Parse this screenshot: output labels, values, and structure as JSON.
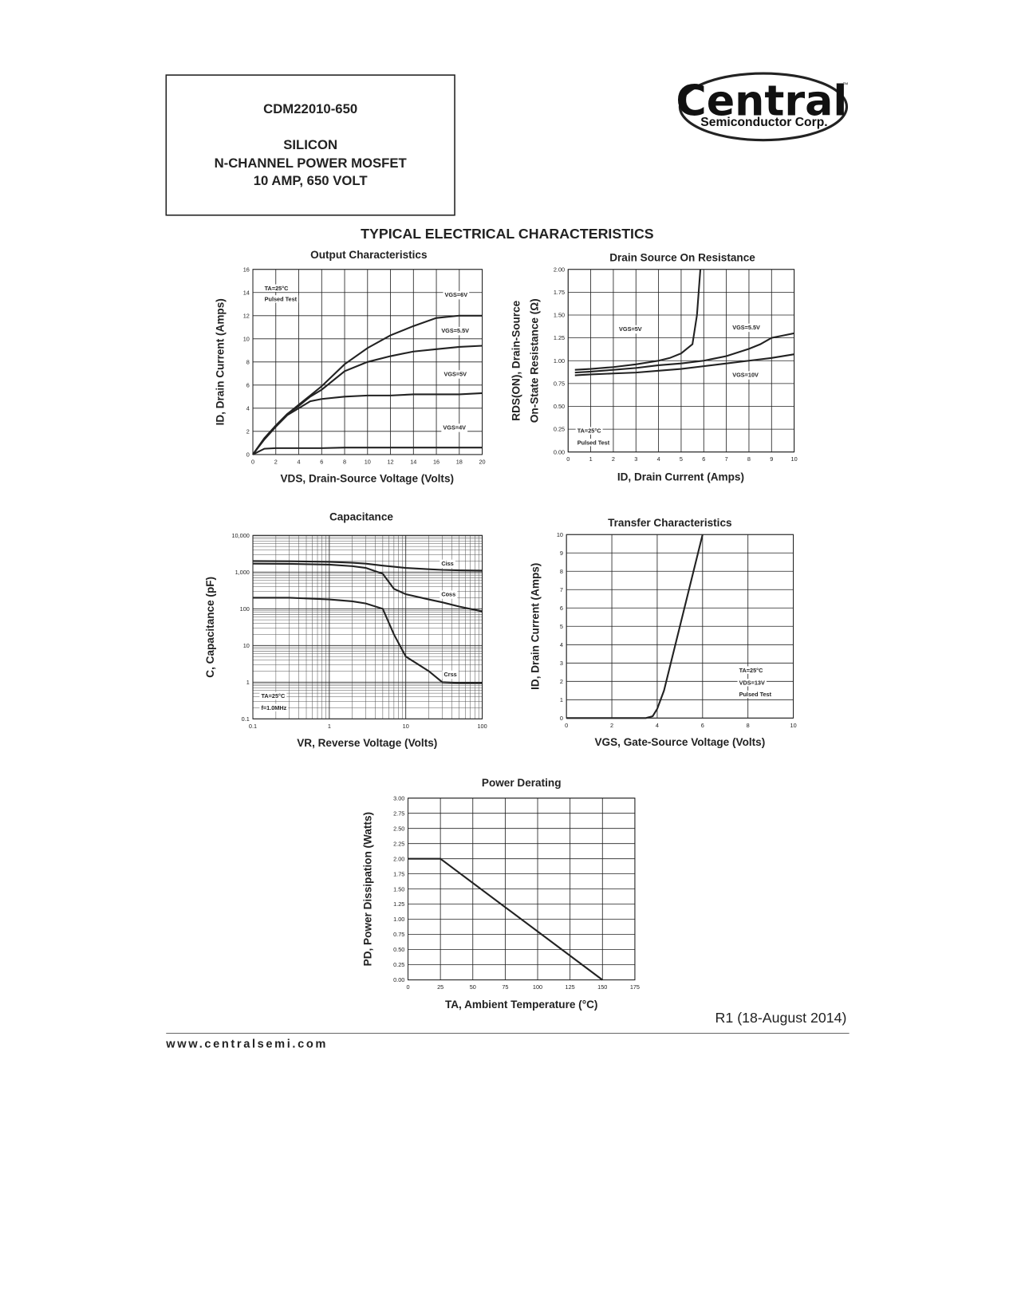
{
  "header": {
    "part": "CDM22010-650",
    "line1": "SILICON",
    "line2": "N-CHANNEL POWER MOSFET",
    "line3": "10 AMP, 650 VOLT"
  },
  "logo": {
    "name": "Central",
    "sub": "Semiconductor Corp.",
    "tm": "™"
  },
  "section_title": "TYPICAL ELECTRICAL CHARACTERISTICS",
  "chart_data": [
    {
      "type": "line",
      "title": "Output Characteristics",
      "x_label": "VDS, Drain-Source Voltage (Volts)",
      "y_label": [
        "ID, Drain Current (Amps)"
      ],
      "xlim": [
        0,
        20
      ],
      "xticks": [
        0,
        2,
        4,
        6,
        8,
        10,
        12,
        14,
        16,
        18,
        20
      ],
      "ylim": [
        0,
        16
      ],
      "yticks": [
        0,
        2,
        4,
        6,
        8,
        10,
        12,
        14,
        16
      ],
      "grid": true,
      "annotations": [
        "TA=25°C",
        "Pulsed Test"
      ],
      "series": [
        {
          "name": "VGS=6V",
          "color": "#222222",
          "x": [
            0,
            1,
            2,
            3,
            4,
            5,
            6,
            8,
            10,
            12,
            14,
            16,
            18,
            20
          ],
          "values": [
            0,
            1.4,
            2.5,
            3.5,
            4.3,
            5.1,
            5.9,
            7.8,
            9.2,
            10.3,
            11.1,
            11.8,
            12.0,
            12.0
          ]
        },
        {
          "name": "VGS=5.5V",
          "color": "#222222",
          "x": [
            0,
            1,
            2,
            3,
            4,
            5,
            6,
            8,
            10,
            12,
            14,
            16,
            18,
            20
          ],
          "values": [
            0,
            1.4,
            2.5,
            3.5,
            4.2,
            5.0,
            5.6,
            7.2,
            8.0,
            8.5,
            8.9,
            9.1,
            9.3,
            9.4
          ]
        },
        {
          "name": "VGS=5V",
          "color": "#222222",
          "x": [
            0,
            1,
            2,
            3,
            4,
            5,
            6,
            8,
            10,
            12,
            14,
            16,
            18,
            20
          ],
          "values": [
            0,
            1.3,
            2.4,
            3.4,
            4.0,
            4.6,
            4.8,
            5.0,
            5.1,
            5.1,
            5.2,
            5.2,
            5.2,
            5.3
          ]
        },
        {
          "name": "VGS=4V",
          "color": "#222222",
          "x": [
            0,
            1,
            2,
            3,
            4,
            5,
            6,
            8,
            10,
            12,
            14,
            16,
            18,
            20
          ],
          "values": [
            0,
            0.5,
            0.55,
            0.55,
            0.55,
            0.55,
            0.55,
            0.6,
            0.6,
            0.6,
            0.6,
            0.6,
            0.6,
            0.6
          ]
        }
      ]
    },
    {
      "type": "line",
      "title": "Drain Source On Resistance",
      "x_label": "ID, Drain Current (Amps)",
      "y_label": [
        "RDS(ON), Drain-Source",
        "On-State Resistance (Ω)"
      ],
      "xlim": [
        0,
        10
      ],
      "xticks": [
        0,
        1,
        2,
        3,
        4,
        5,
        6,
        7,
        8,
        9,
        10
      ],
      "ylim": [
        0,
        2
      ],
      "yticks": [
        {
          "value": 0,
          "label": "0.00"
        },
        {
          "value": 0.25,
          "label": "0.25"
        },
        {
          "value": 0.5,
          "label": "0.50"
        },
        {
          "value": 0.75,
          "label": "0.75"
        },
        {
          "value": 1,
          "label": "1.00"
        },
        {
          "value": 1.25,
          "label": "1.25"
        },
        {
          "value": 1.5,
          "label": "1.50"
        },
        {
          "value": 1.75,
          "label": "1.75"
        },
        {
          "value": 2,
          "label": "2.00"
        }
      ],
      "grid": true,
      "annotations": [
        "TA=25°C",
        "Pulsed Test"
      ],
      "series": [
        {
          "name": "VGS=5V",
          "color": "#222222",
          "x": [
            0.3,
            1,
            2,
            3,
            4,
            4.5,
            5,
            5.5,
            5.7,
            5.85
          ],
          "values": [
            0.9,
            0.91,
            0.93,
            0.96,
            1.0,
            1.03,
            1.08,
            1.18,
            1.5,
            2.0
          ]
        },
        {
          "name": "VGS=5.5V",
          "color": "#222222",
          "x": [
            0.3,
            1,
            2,
            3,
            4,
            5,
            6,
            7,
            8,
            8.5,
            9,
            10
          ],
          "values": [
            0.87,
            0.88,
            0.9,
            0.92,
            0.95,
            0.97,
            1.0,
            1.05,
            1.13,
            1.18,
            1.25,
            1.3
          ]
        },
        {
          "name": "VGS=10V",
          "color": "#222222",
          "x": [
            0.3,
            1,
            2,
            3,
            4,
            5,
            6,
            7,
            8,
            9,
            10
          ],
          "values": [
            0.84,
            0.85,
            0.86,
            0.87,
            0.89,
            0.91,
            0.94,
            0.97,
            1.0,
            1.03,
            1.07
          ]
        }
      ]
    },
    {
      "type": "line",
      "title": "Capacitance",
      "x_label": "VR, Reverse Voltage (Volts)",
      "y_label": [
        "C, Capacitance (pF)"
      ],
      "log_x": true,
      "log_y": true,
      "xlim": [
        0.1,
        100
      ],
      "xticks": [
        0.1,
        1,
        10,
        100
      ],
      "ylim": [
        0.1,
        10000
      ],
      "yticks": [
        0.1,
        1,
        10,
        100,
        {
          "value": 1000,
          "label": "1,000"
        },
        {
          "value": 10000,
          "label": "10,000"
        }
      ],
      "grid": true,
      "annotations": [
        "TA=25°C",
        "f=1.0MHz"
      ],
      "series": [
        {
          "name": "Ciss",
          "color": "#222222",
          "x": [
            0.1,
            0.3,
            1,
            2,
            3,
            5,
            7,
            10,
            20,
            30,
            50,
            100
          ],
          "values": [
            2000,
            1980,
            1900,
            1800,
            1700,
            1500,
            1400,
            1300,
            1200,
            1150,
            1120,
            1100
          ]
        },
        {
          "name": "Coss",
          "color": "#222222",
          "x": [
            0.1,
            0.3,
            1,
            2,
            3,
            5,
            7,
            10,
            20,
            30,
            50,
            100
          ],
          "values": [
            1700,
            1680,
            1600,
            1450,
            1300,
            900,
            350,
            250,
            180,
            150,
            115,
            85
          ]
        },
        {
          "name": "Crss",
          "color": "#222222",
          "x": [
            0.1,
            0.3,
            1,
            2,
            3,
            5,
            7,
            10,
            20,
            30,
            50,
            100
          ],
          "values": [
            200,
            200,
            180,
            160,
            140,
            100,
            20,
            5,
            2,
            1,
            0.95,
            0.95
          ]
        }
      ]
    },
    {
      "type": "line",
      "title": "Transfer Characteristics",
      "x_label": "VGS, Gate-Source Voltage (Volts)",
      "y_label": [
        "ID, Drain Current (Amps)"
      ],
      "xlim": [
        0,
        10
      ],
      "xticks": [
        0,
        2,
        4,
        6,
        8,
        10
      ],
      "ylim": [
        0,
        10
      ],
      "yticks": [
        0,
        1,
        2,
        3,
        4,
        5,
        6,
        7,
        8,
        9,
        10
      ],
      "grid": true,
      "annotations": [
        "TA=25°C",
        "VDS=13V",
        "Pulsed Test"
      ],
      "series": [
        {
          "name": "ID",
          "color": "#222222",
          "x": [
            0,
            2,
            3,
            3.5,
            3.8,
            4,
            4.3,
            4.6,
            5,
            5.5,
            6
          ],
          "values": [
            0,
            0,
            0,
            0,
            0.1,
            0.5,
            1.5,
            3,
            5,
            7.5,
            10
          ]
        }
      ]
    },
    {
      "type": "line",
      "title": "Power Derating",
      "x_label": "TA, Ambient Temperature (°C)",
      "y_label": [
        "PD, Power Dissipation (Watts)"
      ],
      "xlim": [
        0,
        175
      ],
      "xticks": [
        0,
        25,
        50,
        75,
        100,
        125,
        150,
        175
      ],
      "ylim": [
        0,
        3
      ],
      "yticks": [
        {
          "value": 0,
          "label": "0.00"
        },
        {
          "value": 0.25,
          "label": "0.25"
        },
        {
          "value": 0.5,
          "label": "0.50"
        },
        {
          "value": 0.75,
          "label": "0.75"
        },
        {
          "value": 1,
          "label": "1.00"
        },
        {
          "value": 1.25,
          "label": "1.25"
        },
        {
          "value": 1.5,
          "label": "1.50"
        },
        {
          "value": 1.75,
          "label": "1.75"
        },
        {
          "value": 2,
          "label": "2.00"
        },
        {
          "value": 2.25,
          "label": "2.25"
        },
        {
          "value": 2.5,
          "label": "2.50"
        },
        {
          "value": 2.75,
          "label": "2.75"
        },
        {
          "value": 3,
          "label": "3.00"
        }
      ],
      "grid": true,
      "series": [
        {
          "name": "PD",
          "color": "#222222",
          "x": [
            0,
            25,
            150
          ],
          "values": [
            2,
            2,
            0
          ]
        }
      ]
    }
  ],
  "footer": {
    "revision": "R1 (18-August 2014)",
    "website": "www.centralsemi.com"
  }
}
